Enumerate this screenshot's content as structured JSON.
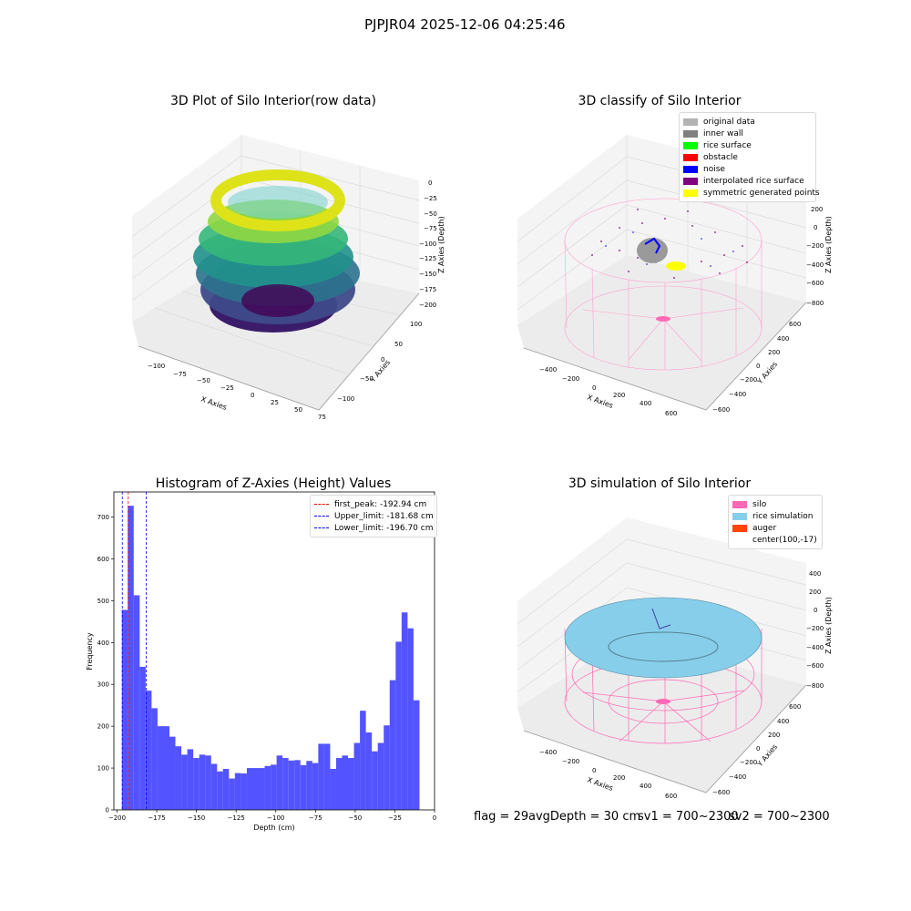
{
  "suptitle": "PJPJR04 2025-12-06 04:25:46",
  "panels": {
    "raw": {
      "title": "3D Plot of Silo Interior(row data)",
      "xlabel": "X Axies",
      "ylabel": "Y Axies",
      "zlabel": "Z Axies (Depth)",
      "xticks": [
        "−100",
        "−75",
        "−50",
        "−25",
        "0",
        "25",
        "50",
        "75"
      ],
      "yticks": [
        "−100",
        "−50",
        "0",
        "50",
        "100"
      ],
      "zticks": [
        "0",
        "−25",
        "−50",
        "−75",
        "−100",
        "−125",
        "−150",
        "−175",
        "−200"
      ]
    },
    "classify": {
      "title": "3D classify of Silo Interior",
      "xlabel": "X Axies",
      "ylabel": "Y Axies",
      "zlabel": "Z Axies (Depth)",
      "xticks": [
        "−400",
        "−200",
        "0",
        "200",
        "400",
        "600"
      ],
      "yticks": [
        "−600",
        "−400",
        "−200",
        "0",
        "200",
        "400",
        "600"
      ],
      "zticks": [
        "200",
        "0",
        "−200",
        "−400",
        "−600",
        "−800"
      ],
      "legend": [
        {
          "label": "original data",
          "color": "#b3b3b3"
        },
        {
          "label": "inner wall",
          "color": "#808080"
        },
        {
          "label": "rice surface",
          "color": "#00ff00"
        },
        {
          "label": "obstacle",
          "color": "#ff0000"
        },
        {
          "label": "noise",
          "color": "#0000ff"
        },
        {
          "label": "interpolated rice surface",
          "color": "#800080"
        },
        {
          "label": "symmetric generated points",
          "color": "#ffff00"
        }
      ]
    },
    "simulation": {
      "title": "3D simulation of Silo Interior",
      "xlabel": "X Axies",
      "ylabel": "Y Axies",
      "zlabel": "Z Axies (Depth)",
      "xticks": [
        "−400",
        "−200",
        "0",
        "200",
        "400",
        "600"
      ],
      "yticks": [
        "−600",
        "−400",
        "−200",
        "0",
        "200",
        "400",
        "600"
      ],
      "zticks": [
        "400",
        "200",
        "0",
        "−200",
        "−400",
        "−600",
        "−800"
      ],
      "legend": [
        {
          "label": "silo",
          "color": "#ff69b4"
        },
        {
          "label": "rice simulation",
          "color": "#87ceeb"
        },
        {
          "label": "auger",
          "color": "#ff4500"
        },
        {
          "label": "center(100,-17)",
          "color": ""
        }
      ]
    }
  },
  "footer": {
    "flag": "flag = 29",
    "avg": "avgDepth = 30 cm",
    "sv1": "sv1 = 700~2300",
    "sv2": "sv2 = 700~2300"
  },
  "chart_data": [
    {
      "type": "bar",
      "title": "Histogram of Z-Axies (Height) Values",
      "xlabel": "Depth (cm)",
      "ylabel": "Frequency",
      "xlim": [
        -202,
        0
      ],
      "ylim": [
        0,
        760
      ],
      "xticks": [
        -200,
        -175,
        -150,
        -125,
        -100,
        -75,
        -50,
        -25,
        0
      ],
      "xtick_labels": [
        "−200",
        "−175",
        "−150",
        "−125",
        "−100",
        "−75",
        "−50",
        "−25",
        "0"
      ],
      "yticks": [
        0,
        100,
        200,
        300,
        400,
        500,
        600,
        700
      ],
      "bin_start": -197,
      "bin_width": 3.75,
      "bar_color": "#4a4aff",
      "values": [
        478,
        727,
        513,
        342,
        285,
        243,
        200,
        200,
        175,
        152,
        132,
        145,
        124,
        132,
        130,
        110,
        92,
        98,
        75,
        88,
        87,
        100,
        100,
        100,
        105,
        108,
        130,
        124,
        118,
        119,
        107,
        117,
        112,
        158,
        158,
        98,
        124,
        130,
        124,
        160,
        237,
        185,
        140,
        160,
        202,
        310,
        402,
        472,
        434,
        262
      ],
      "vlines": [
        {
          "label": "first_peak: -192.94 cm",
          "x": -192.94,
          "color": "#ff0000"
        },
        {
          "label": "Upper_limit: -181.68 cm",
          "x": -181.68,
          "color": "#0000ff"
        },
        {
          "label": "Lower_limit: -196.70 cm",
          "x": -196.7,
          "color": "#0000ff"
        }
      ],
      "legend_position": "upper right"
    }
  ]
}
